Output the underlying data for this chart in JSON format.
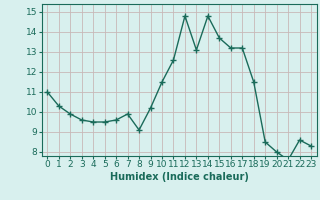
{
  "x": [
    0,
    1,
    2,
    3,
    4,
    5,
    6,
    7,
    8,
    9,
    10,
    11,
    12,
    13,
    14,
    15,
    16,
    17,
    18,
    19,
    20,
    21,
    22,
    23
  ],
  "y": [
    11.0,
    10.3,
    9.9,
    9.6,
    9.5,
    9.5,
    9.6,
    9.9,
    9.1,
    10.2,
    11.5,
    12.6,
    14.8,
    13.1,
    14.8,
    13.7,
    13.2,
    13.2,
    11.5,
    8.5,
    8.0,
    7.6,
    8.6,
    8.3
  ],
  "line_color": "#1a6b5a",
  "marker": "+",
  "marker_size": 4,
  "bg_color": "#d8f0ee",
  "grid_color": "#c8b8b8",
  "xlabel": "Humidex (Indice chaleur)",
  "xlim": [
    -0.5,
    23.5
  ],
  "ylim": [
    7.8,
    15.4
  ],
  "yticks": [
    8,
    9,
    10,
    11,
    12,
    13,
    14,
    15
  ],
  "xticks": [
    0,
    1,
    2,
    3,
    4,
    5,
    6,
    7,
    8,
    9,
    10,
    11,
    12,
    13,
    14,
    15,
    16,
    17,
    18,
    19,
    20,
    21,
    22,
    23
  ],
  "label_fontsize": 7,
  "tick_fontsize": 6.5,
  "tick_color": "#1a6b5a"
}
